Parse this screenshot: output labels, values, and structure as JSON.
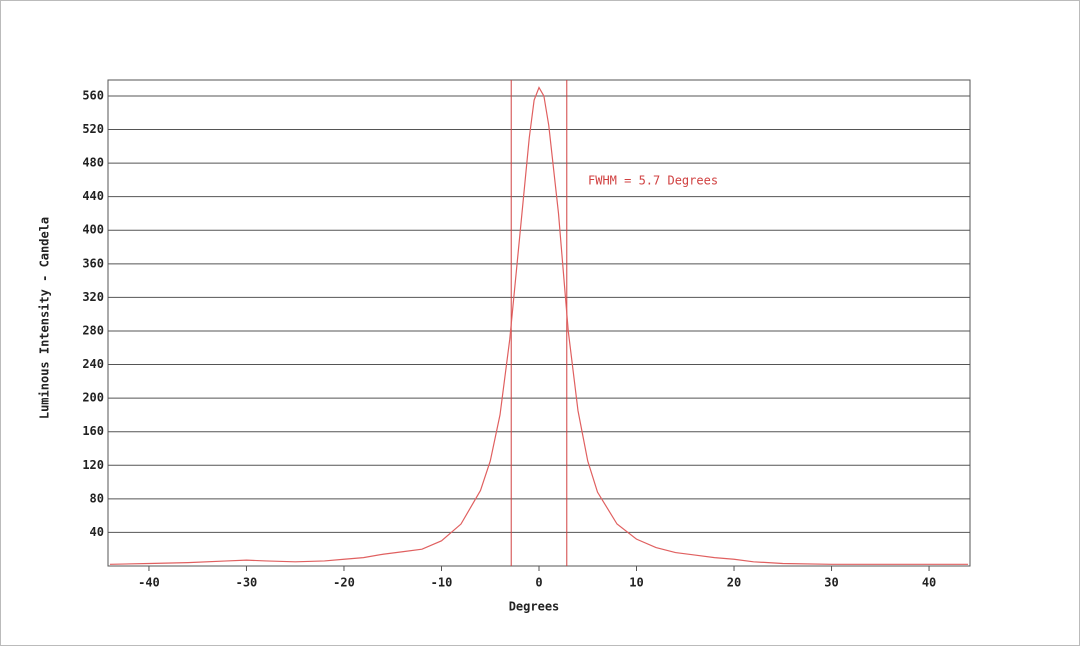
{
  "chart_data": {
    "type": "line",
    "x_label": "Degrees",
    "y_label": "Luminous Intensity - Candela",
    "annotation": "FWHM =  5.7 Degrees",
    "x": [
      -44,
      -40,
      -36,
      -32,
      -30,
      -28,
      -25,
      -22,
      -20,
      -18,
      -16,
      -14,
      -12,
      -10,
      -8,
      -6,
      -5,
      -4,
      -3,
      -2,
      -1,
      -0.5,
      0,
      0.5,
      1,
      2,
      3,
      4,
      5,
      6,
      8,
      10,
      12,
      14,
      16,
      18,
      20,
      22,
      25,
      30,
      35,
      40,
      44
    ],
    "series": [
      {
        "color": "#e06060",
        "values": [
          2,
          3,
          4,
          6,
          7,
          6,
          5,
          6,
          8,
          10,
          14,
          17,
          20,
          30,
          50,
          90,
          125,
          180,
          270,
          390,
          510,
          555,
          570,
          560,
          525,
          420,
          280,
          185,
          125,
          88,
          50,
          32,
          22,
          16,
          13,
          10,
          8,
          5,
          3,
          2,
          2,
          2,
          2
        ]
      }
    ],
    "vlines": [
      -2.85,
      2.85
    ],
    "vline_color": "#d04040",
    "xlim": [
      -44.2,
      44.2
    ],
    "ylim": [
      0,
      579
    ],
    "xticks": [
      -40,
      -30,
      -20,
      -10,
      0,
      10,
      20,
      30,
      40
    ],
    "yticks": [
      40,
      80,
      120,
      160,
      200,
      240,
      280,
      320,
      360,
      400,
      440,
      480,
      520,
      560
    ],
    "grid": true
  }
}
